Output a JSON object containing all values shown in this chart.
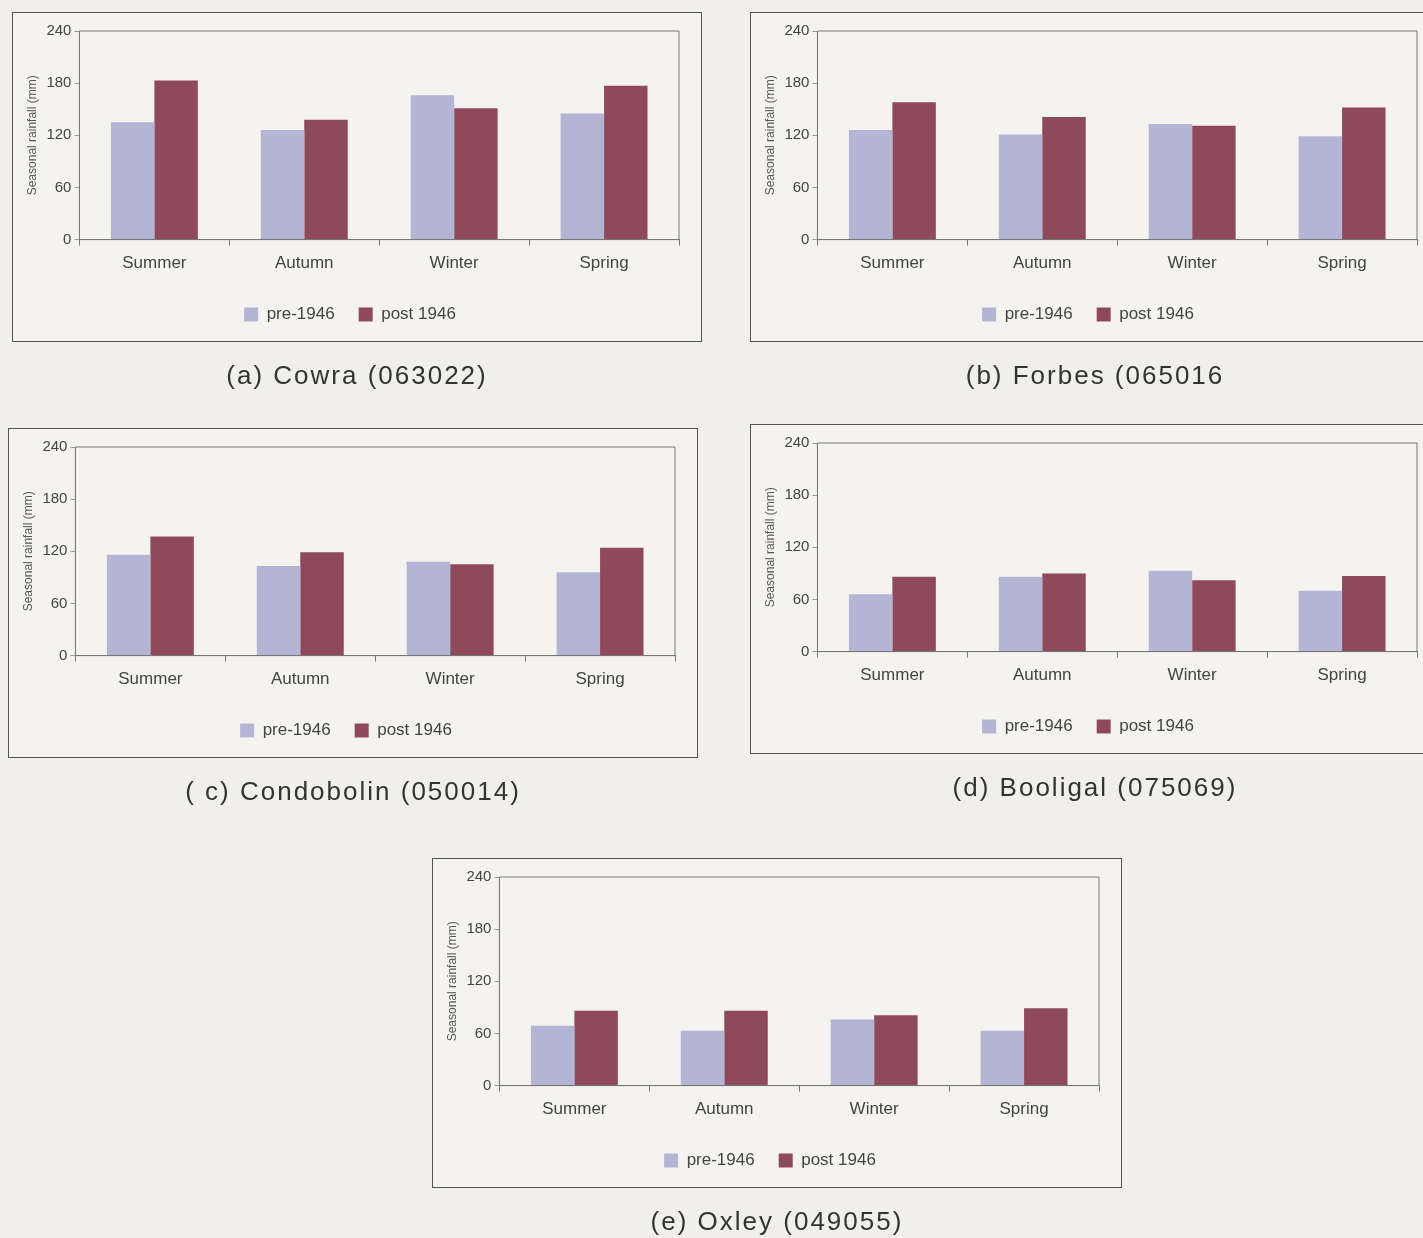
{
  "chart_data": [
    {
      "type": "bar",
      "title": "(a)  Cowra (063022)",
      "ylabel": "Seasonal rainfall (mm)",
      "categories": [
        "Summer",
        "Autumn",
        "Winter",
        "Spring"
      ],
      "series": [
        {
          "name": "pre-1946",
          "color": "#b4b4d4",
          "values": [
            135,
            126,
            166,
            145
          ]
        },
        {
          "name": "post 1946",
          "color": "#8e4a5a",
          "values": [
            183,
            138,
            151,
            177
          ]
        }
      ],
      "ylim": [
        0,
        240
      ],
      "yticks": [
        0,
        60,
        120,
        180,
        240
      ],
      "grid": false,
      "legend": "bottom"
    },
    {
      "type": "bar",
      "title": "(b)  Forbes (065016",
      "ylabel": "Seasonal rainfall (mm)",
      "categories": [
        "Summer",
        "Autumn",
        "Winter",
        "Spring"
      ],
      "series": [
        {
          "name": "pre-1946",
          "color": "#b4b4d4",
          "values": [
            126,
            121,
            133,
            119
          ]
        },
        {
          "name": "post 1946",
          "color": "#8e4a5a",
          "values": [
            158,
            141,
            131,
            152
          ]
        }
      ],
      "ylim": [
        0,
        240
      ],
      "yticks": [
        0,
        60,
        120,
        180,
        240
      ],
      "grid": false,
      "legend": "bottom"
    },
    {
      "type": "bar",
      "title": "( c) Condobolin (050014)",
      "ylabel": "Seasonal rainfall (mm)",
      "categories": [
        "Summer",
        "Autumn",
        "Winter",
        "Spring"
      ],
      "series": [
        {
          "name": "pre-1946",
          "color": "#b4b4d4",
          "values": [
            116,
            103,
            108,
            96
          ]
        },
        {
          "name": "post 1946",
          "color": "#8e4a5a",
          "values": [
            137,
            119,
            105,
            124
          ]
        }
      ],
      "ylim": [
        0,
        240
      ],
      "yticks": [
        0,
        60,
        120,
        180,
        240
      ],
      "grid": false,
      "legend": "bottom"
    },
    {
      "type": "bar",
      "title": "(d) Booligal (075069)",
      "ylabel": "Seasonal rainfall (mm)",
      "categories": [
        "Summer",
        "Autumn",
        "Winter",
        "Spring"
      ],
      "series": [
        {
          "name": "pre-1946",
          "color": "#b4b4d4",
          "values": [
            66,
            86,
            93,
            70
          ]
        },
        {
          "name": "post 1946",
          "color": "#8e4a5a",
          "values": [
            86,
            90,
            82,
            87
          ]
        }
      ],
      "ylim": [
        0,
        240
      ],
      "yticks": [
        0,
        60,
        120,
        180,
        240
      ],
      "grid": false,
      "legend": "bottom"
    },
    {
      "type": "bar",
      "title": "(e) Oxley (049055)",
      "ylabel": "Seasonal rainfall (mm)",
      "categories": [
        "Summer",
        "Autumn",
        "Winter",
        "Spring"
      ],
      "series": [
        {
          "name": "pre-1946",
          "color": "#b4b4d4",
          "values": [
            69,
            63,
            76,
            63
          ]
        },
        {
          "name": "post 1946",
          "color": "#8e4a5a",
          "values": [
            86,
            86,
            81,
            89
          ]
        }
      ],
      "ylim": [
        0,
        240
      ],
      "yticks": [
        0,
        60,
        120,
        180,
        240
      ],
      "grid": false,
      "legend": "bottom"
    }
  ]
}
